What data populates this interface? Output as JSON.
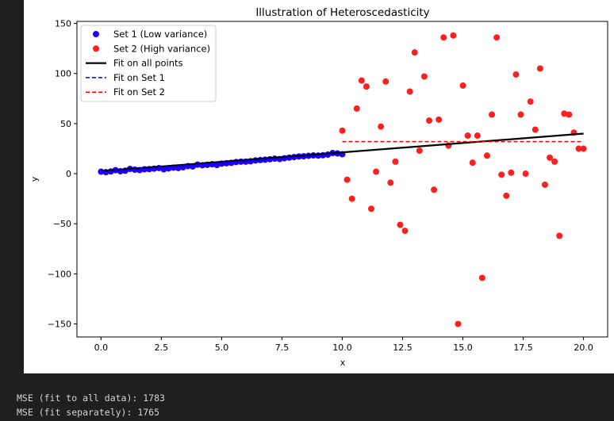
{
  "output_lines": [
    "MSE (fit to all data): 1783",
    "MSE (fit separately): 1765"
  ],
  "chart_data": {
    "type": "scatter",
    "title": "Illustration of Heteroscedasticity",
    "xlabel": "x",
    "ylabel": "y",
    "xlim": [
      -1.0,
      21.0
    ],
    "ylim": [
      -163,
      152
    ],
    "xticks": [
      0.0,
      2.5,
      5.0,
      7.5,
      10.0,
      12.5,
      15.0,
      17.5,
      20.0
    ],
    "xtick_labels": [
      "0.0",
      "2.5",
      "5.0",
      "7.5",
      "10.0",
      "12.5",
      "15.0",
      "17.5",
      "20.0"
    ],
    "yticks": [
      -150,
      -100,
      -50,
      0,
      50,
      100,
      150
    ],
    "ytick_labels": [
      "−150",
      "−100",
      "−50",
      "0",
      "50",
      "100",
      "150"
    ],
    "grid": false,
    "legend_position": "top-left",
    "colors": {
      "set1": "#1f00ff",
      "set2": "#ff1f1f",
      "fit_all": "#000000",
      "fit_set1": "#0000ff",
      "fit_set2": "#ff0000"
    },
    "series": [
      {
        "name": "Set 1 (Low variance)",
        "kind": "scatter",
        "color_key": "set1",
        "x": [
          0.0,
          0.2,
          0.4,
          0.6,
          0.8,
          1.0,
          1.2,
          1.4,
          1.6,
          1.8,
          2.0,
          2.2,
          2.4,
          2.6,
          2.8,
          3.0,
          3.2,
          3.4,
          3.6,
          3.8,
          4.0,
          4.2,
          4.4,
          4.6,
          4.8,
          5.0,
          5.2,
          5.4,
          5.6,
          5.8,
          6.0,
          6.2,
          6.4,
          6.6,
          6.8,
          7.0,
          7.2,
          7.4,
          7.6,
          7.8,
          8.0,
          8.2,
          8.4,
          8.6,
          8.8,
          9.0,
          9.2,
          9.4,
          9.6,
          9.8,
          10.0
        ],
        "y": [
          2,
          1.5,
          2.2,
          3.5,
          2.4,
          3,
          4.8,
          4,
          3.6,
          4.4,
          4.6,
          5,
          5.6,
          4.4,
          5.2,
          6,
          5.6,
          6.4,
          7.6,
          7.2,
          9,
          8.4,
          8.8,
          9.4,
          8.6,
          10,
          10.4,
          10.8,
          11.6,
          12,
          12,
          12.4,
          13.2,
          13.6,
          14,
          14.4,
          15,
          14.6,
          15.4,
          16,
          16.6,
          17.2,
          17.4,
          17.8,
          18.2,
          18,
          18.4,
          19,
          20.6,
          20.2,
          19.4
        ]
      },
      {
        "name": "Set 2 (High variance)",
        "kind": "scatter",
        "color_key": "set2",
        "x": [
          10.0,
          10.2,
          10.4,
          10.6,
          10.8,
          11.0,
          11.2,
          11.4,
          11.6,
          11.8,
          12.0,
          12.2,
          12.4,
          12.6,
          12.8,
          13.0,
          13.2,
          13.4,
          13.6,
          13.8,
          14.0,
          14.2,
          14.4,
          14.6,
          14.8,
          15.0,
          15.2,
          15.4,
          15.6,
          15.8,
          16.0,
          16.2,
          16.4,
          16.6,
          16.8,
          17.0,
          17.2,
          17.4,
          17.6,
          17.8,
          18.0,
          18.2,
          18.4,
          18.6,
          18.8,
          19.0,
          19.2,
          19.4,
          19.6,
          19.8,
          20.0
        ],
        "y": [
          43,
          -6,
          -25,
          65,
          93,
          87,
          -35,
          2,
          47,
          92,
          -9,
          12,
          -51,
          -57,
          82,
          121,
          23,
          97,
          53,
          -16,
          54,
          136,
          28,
          138,
          -150,
          88,
          38,
          11,
          38,
          -104,
          18,
          59,
          136,
          -1,
          -22,
          1,
          99,
          59,
          0,
          72,
          44,
          105,
          -11,
          16,
          12,
          -62,
          60,
          59,
          41,
          25,
          25
        ]
      },
      {
        "name": "Fit on all points",
        "kind": "line",
        "color_key": "fit_all",
        "dash": "solid",
        "x": [
          0.0,
          20.0
        ],
        "y": [
          2.5,
          40.0
        ]
      },
      {
        "name": "Fit on Set 1",
        "kind": "line",
        "color_key": "fit_set1",
        "dash": "dashed",
        "x": [
          0.0,
          10.0
        ],
        "y": [
          2.0,
          20.0
        ]
      },
      {
        "name": "Fit on Set 2",
        "kind": "line",
        "color_key": "fit_set2",
        "dash": "dashed",
        "x": [
          10.0,
          20.0
        ],
        "y": [
          32.0,
          32.0
        ]
      }
    ]
  }
}
